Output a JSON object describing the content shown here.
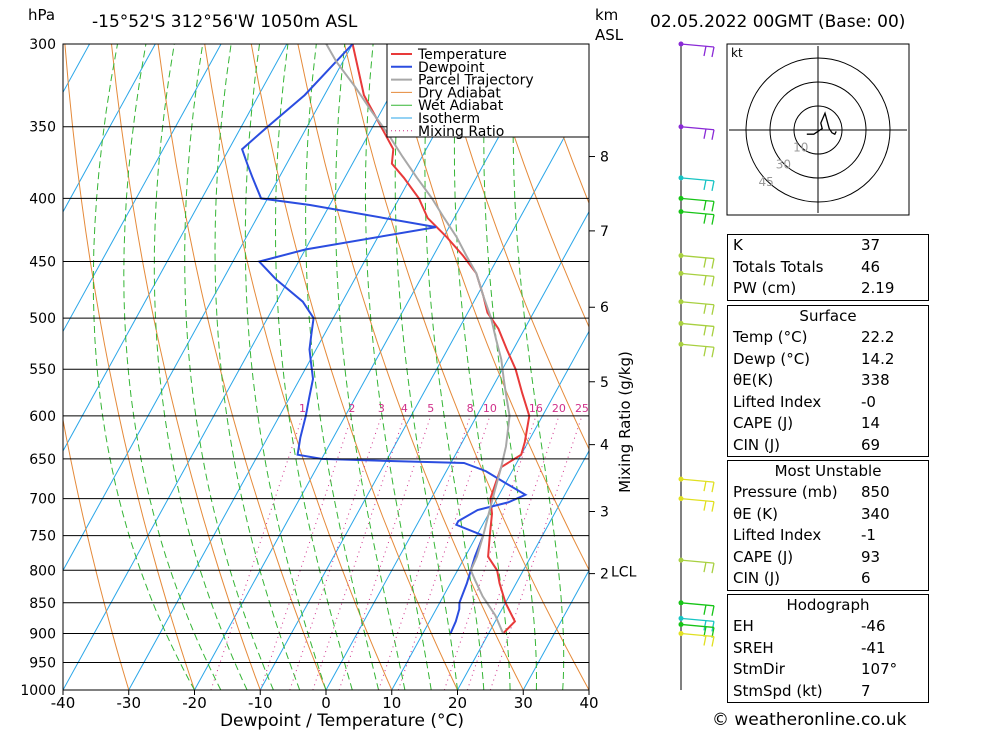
{
  "header": {
    "unit_left": "hPa",
    "location": "-15°52'S  312°56'W  1050m  ASL",
    "unit_km": "km",
    "unit_asl": "ASL",
    "datetime": "02.05.2022  00GMT  (Base: 00)"
  },
  "chart_data": {
    "type": "line",
    "xlabel": "Dewpoint / Temperature (°C)",
    "ylabel": "hPa",
    "right_axis_label": "Mixing Ratio (g/kg)",
    "x_ticks": [
      "-40",
      "-30",
      "-20",
      "-10",
      "0",
      "10",
      "20",
      "30",
      "40"
    ],
    "xlim": [
      -40,
      40
    ],
    "pressure_levels": [
      "300",
      "350",
      "400",
      "450",
      "500",
      "550",
      "600",
      "650",
      "700",
      "750",
      "800",
      "850",
      "900",
      "950",
      "1000"
    ],
    "ylim": [
      1000,
      300
    ],
    "km_ticks": [
      {
        "label": "8",
        "p": 370
      },
      {
        "label": "7",
        "p": 425
      },
      {
        "label": "6",
        "p": 490
      },
      {
        "label": "5",
        "p": 563
      },
      {
        "label": "4",
        "p": 633
      },
      {
        "label": "3",
        "p": 717
      },
      {
        "label": "2",
        "p": 805
      }
    ],
    "lcl": {
      "label": "LCL",
      "p": 800
    },
    "mixing_ratio_labels": [
      "1",
      "2",
      "3",
      "4",
      "5",
      "8",
      "10",
      "16",
      "20",
      "25"
    ],
    "legend": [
      "Temperature",
      "Dewpoint",
      "Parcel Trajectory",
      "Dry Adiabat",
      "Wet Adiabat",
      "Isotherm",
      "Mixing Ratio"
    ],
    "colors": {
      "temperature": "#e83a3a",
      "dewpoint": "#2b4de0",
      "parcel": "#a8a8a8",
      "dry_adiabat": "#e58a3a",
      "wet_adiabat": "#35b535",
      "isotherm": "#2aa6e8",
      "mixing_ratio": "#d0308a"
    },
    "series": [
      {
        "name": "Temperature",
        "points": [
          [
            22.2,
            900
          ],
          [
            23,
            880
          ],
          [
            20,
            850
          ],
          [
            17.5,
            820
          ],
          [
            16,
            800
          ],
          [
            13.5,
            780
          ],
          [
            12,
            750
          ],
          [
            10.5,
            720
          ],
          [
            9,
            700
          ],
          [
            8.5,
            680
          ],
          [
            8,
            660
          ],
          [
            10,
            645
          ],
          [
            9.5,
            630
          ],
          [
            8,
            600
          ],
          [
            5,
            575
          ],
          [
            2,
            550
          ],
          [
            -1,
            530
          ],
          [
            -4,
            510
          ],
          [
            -7,
            495
          ],
          [
            -9,
            480
          ],
          [
            -12,
            460
          ],
          [
            -15.5,
            445
          ],
          [
            -19.5,
            430
          ],
          [
            -24,
            415
          ],
          [
            -27,
            400
          ],
          [
            -31,
            385
          ],
          [
            -34,
            375
          ],
          [
            -35,
            365
          ],
          [
            -44,
            330
          ],
          [
            -50,
            300
          ]
        ]
      },
      {
        "name": "Dewpoint",
        "points": [
          [
            14.2,
            900
          ],
          [
            14,
            880
          ],
          [
            13.5,
            860
          ],
          [
            13,
            850
          ],
          [
            12.5,
            820
          ],
          [
            12,
            800
          ],
          [
            11.5,
            780
          ],
          [
            11,
            750
          ],
          [
            6,
            735
          ],
          [
            6,
            730
          ],
          [
            8,
            715
          ],
          [
            12,
            705
          ],
          [
            14,
            695
          ],
          [
            10,
            680
          ],
          [
            6,
            665
          ],
          [
            2,
            655
          ],
          [
            -8,
            653
          ],
          [
            -20,
            650
          ],
          [
            -24,
            645
          ],
          [
            -25,
            625
          ],
          [
            -26,
            600
          ],
          [
            -27,
            580
          ],
          [
            -28,
            560
          ],
          [
            -29.5,
            545
          ],
          [
            -31,
            530
          ],
          [
            -32,
            515
          ],
          [
            -33,
            500
          ],
          [
            -36,
            485
          ],
          [
            -42,
            465
          ],
          [
            -46,
            450
          ],
          [
            -40,
            440
          ],
          [
            -22,
            422
          ],
          [
            -43,
            405
          ],
          [
            -51,
            400
          ],
          [
            -54,
            385
          ],
          [
            -56,
            375
          ],
          [
            -58,
            365
          ],
          [
            -56,
            350
          ],
          [
            -53,
            330
          ],
          [
            -50,
            300
          ]
        ]
      },
      {
        "name": "Parcel Trajectory",
        "points": [
          [
            22.2,
            900
          ],
          [
            19.5,
            870
          ],
          [
            16,
            840
          ],
          [
            13.5,
            815
          ],
          [
            12,
            800
          ],
          [
            11.8,
            780
          ],
          [
            11,
            750
          ],
          [
            10,
            720
          ],
          [
            9,
            690
          ],
          [
            8,
            660
          ],
          [
            7,
            635
          ],
          [
            5,
            600
          ],
          [
            3,
            580
          ],
          [
            1,
            560
          ],
          [
            -1,
            540
          ],
          [
            -3.5,
            520
          ],
          [
            -6,
            500
          ],
          [
            -9,
            480
          ],
          [
            -12,
            460
          ],
          [
            -15,
            445
          ],
          [
            -18,
            430
          ],
          [
            -21.5,
            415
          ],
          [
            -25,
            400
          ],
          [
            -29,
            385
          ],
          [
            -33,
            370
          ],
          [
            -37,
            355
          ],
          [
            -41.5,
            340
          ],
          [
            -46,
            325
          ],
          [
            -51,
            310
          ],
          [
            -54,
            300
          ]
        ]
      }
    ]
  },
  "wind_barbs": [
    {
      "p": 300,
      "color": "#8a2ad6"
    },
    {
      "p": 350,
      "color": "#8a2ad6"
    },
    {
      "p": 385,
      "color": "#17c4c4"
    },
    {
      "p": 400,
      "color": "#17c417"
    },
    {
      "p": 410,
      "color": "#17c417"
    },
    {
      "p": 445,
      "color": "#a8d040"
    },
    {
      "p": 460,
      "color": "#a8d040"
    },
    {
      "p": 485,
      "color": "#a8d040"
    },
    {
      "p": 505,
      "color": "#a8d040"
    },
    {
      "p": 525,
      "color": "#a8d040"
    },
    {
      "p": 675,
      "color": "#e0e020"
    },
    {
      "p": 700,
      "color": "#e0e020"
    },
    {
      "p": 785,
      "color": "#a8d040"
    },
    {
      "p": 850,
      "color": "#17c417"
    },
    {
      "p": 875,
      "color": "#17c4c4"
    },
    {
      "p": 885,
      "color": "#17c417"
    },
    {
      "p": 900,
      "color": "#e0e020"
    }
  ],
  "hodograph": {
    "unit": "kt",
    "ring_labels": [
      "10",
      "30",
      "45"
    ],
    "points": [
      [
        -8,
        3
      ],
      [
        -3,
        3
      ],
      [
        3,
        -1
      ],
      [
        2,
        -5
      ],
      [
        5,
        -12
      ],
      [
        8,
        -1
      ],
      [
        10,
        2
      ],
      [
        12,
        3
      ],
      [
        13,
        1
      ]
    ]
  },
  "tables": {
    "indices": [
      {
        "label": "K",
        "value": "37"
      },
      {
        "label": "Totals Totals",
        "value": "46"
      },
      {
        "label": "PW (cm)",
        "value": "2.19"
      }
    ],
    "surface": {
      "title": "Surface",
      "rows": [
        {
          "label": "Temp (°C)",
          "value": "22.2"
        },
        {
          "label": "Dewp (°C)",
          "value": "14.2"
        },
        {
          "label": "θE(K)",
          "value": "338"
        },
        {
          "label": "Lifted Index",
          "value": "-0"
        },
        {
          "label": "CAPE (J)",
          "value": "14"
        },
        {
          "label": "CIN (J)",
          "value": "69"
        }
      ]
    },
    "most_unstable": {
      "title": "Most Unstable",
      "rows": [
        {
          "label": "Pressure (mb)",
          "value": "850"
        },
        {
          "label": "θE (K)",
          "value": "340"
        },
        {
          "label": "Lifted Index",
          "value": "-1"
        },
        {
          "label": "CAPE (J)",
          "value": "93"
        },
        {
          "label": "CIN (J)",
          "value": "6"
        }
      ]
    },
    "hodograph_tbl": {
      "title": "Hodograph",
      "rows": [
        {
          "label": "EH",
          "value": "-46"
        },
        {
          "label": "SREH",
          "value": "-41"
        },
        {
          "label": "StmDir",
          "value": "107°"
        },
        {
          "label": "StmSpd (kt)",
          "value": "7"
        }
      ]
    }
  },
  "footer": "© weatheronline.co.uk"
}
